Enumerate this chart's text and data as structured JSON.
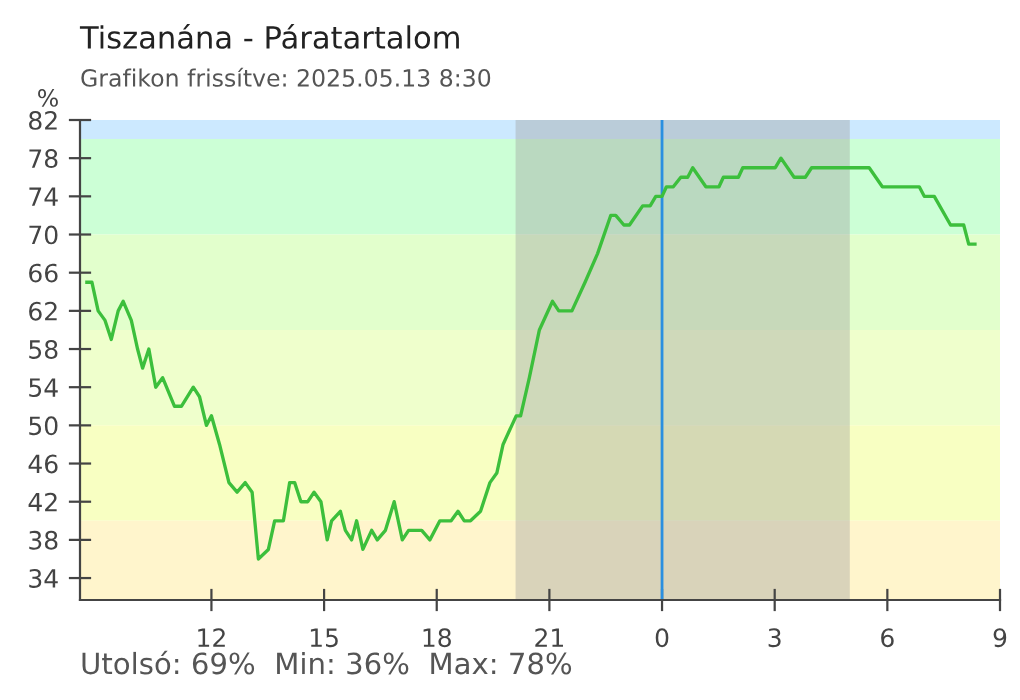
{
  "chart_data": {
    "type": "line",
    "title": "Tiszanána - Páratartalom",
    "subtitle": "Grafikon frissítve: 2025.05.13 8:30",
    "ylabel": "%",
    "annotations": [
      "Utolsó: 69%  Min: 36%  Max: 78%"
    ],
    "series": [
      {
        "color": "#3cbf3c",
        "x": [
          "2025-05-12T08:41",
          "2025-05-12T08:49",
          "2025-05-12T08:59",
          "2025-05-12T09:10",
          "2025-05-12T09:20",
          "2025-05-12T09:31",
          "2025-05-12T09:39",
          "2025-05-12T09:52",
          "2025-05-12T10:02",
          "2025-05-12T10:10",
          "2025-05-12T10:20",
          "2025-05-12T10:31",
          "2025-05-12T10:42",
          "2025-05-12T11:01",
          "2025-05-12T11:12",
          "2025-05-12T11:31",
          "2025-05-12T11:41",
          "2025-05-12T11:52",
          "2025-05-12T12:00",
          "2025-05-12T12:13",
          "2025-05-12T12:28",
          "2025-05-12T12:41",
          "2025-05-12T12:54",
          "2025-05-12T13:05",
          "2025-05-12T13:15",
          "2025-05-12T13:31",
          "2025-05-12T13:41",
          "2025-05-12T13:55",
          "2025-05-12T14:05",
          "2025-05-12T14:13",
          "2025-05-12T14:23",
          "2025-05-12T14:34",
          "2025-05-12T14:44",
          "2025-05-12T14:55",
          "2025-05-12T15:05",
          "2025-05-12T15:12",
          "2025-05-12T15:26",
          "2025-05-12T15:34",
          "2025-05-12T15:44",
          "2025-05-12T15:52",
          "2025-05-12T16:02",
          "2025-05-12T16:16",
          "2025-05-12T16:25",
          "2025-05-12T16:38",
          "2025-05-12T16:52",
          "2025-05-12T17:05",
          "2025-05-12T17:15",
          "2025-05-12T17:36",
          "2025-05-12T17:49",
          "2025-05-12T18:05",
          "2025-05-12T18:23",
          "2025-05-12T18:34",
          "2025-05-12T18:44",
          "2025-05-12T18:54",
          "2025-05-12T19:10",
          "2025-05-12T19:25",
          "2025-05-12T19:36",
          "2025-05-12T19:46",
          "2025-05-12T20:00",
          "2025-05-12T20:07",
          "2025-05-12T20:14",
          "2025-05-12T20:28",
          "2025-05-12T20:44",
          "2025-05-12T21:05",
          "2025-05-12T21:15",
          "2025-05-12T21:36",
          "2025-05-12T21:57",
          "2025-05-12T22:17",
          "2025-05-12T22:38",
          "2025-05-12T22:46",
          "2025-05-12T22:59",
          "2025-05-12T23:08",
          "2025-05-12T23:29",
          "2025-05-12T23:41",
          "2025-05-12T23:50",
          "2025-05-13T00:00",
          "2025-05-13T00:07",
          "2025-05-13T00:18",
          "2025-05-13T00:30",
          "2025-05-13T00:41",
          "2025-05-13T00:49",
          "2025-05-13T01:10",
          "2025-05-13T01:31",
          "2025-05-13T01:38",
          "2025-05-13T02:02",
          "2025-05-13T02:09",
          "2025-05-13T03:01",
          "2025-05-13T03:10",
          "2025-05-13T03:31",
          "2025-05-13T03:49",
          "2025-05-13T03:59",
          "2025-05-13T05:31",
          "2025-05-13T05:52",
          "2025-05-13T06:51",
          "2025-05-13T06:59",
          "2025-05-13T07:15",
          "2025-05-13T07:41",
          "2025-05-13T08:02",
          "2025-05-13T08:10",
          "2025-05-13T08:20"
        ],
        "values": [
          65,
          65,
          62,
          61,
          59,
          62,
          63,
          61,
          58,
          56,
          58,
          54,
          55,
          52,
          52,
          54,
          53,
          50,
          51,
          48,
          44,
          43,
          44,
          43,
          36,
          37,
          40,
          40,
          44,
          44,
          42,
          42,
          43,
          42,
          38,
          40,
          41,
          39,
          38,
          40,
          37,
          39,
          38,
          39,
          42,
          38,
          39,
          39,
          38,
          40,
          40,
          41,
          40,
          40,
          41,
          44,
          45,
          48,
          50,
          51,
          51,
          55,
          60,
          63,
          62,
          62,
          65,
          68,
          72,
          72,
          71,
          71,
          73,
          73,
          74,
          74,
          75,
          75,
          76,
          76,
          77,
          75,
          75,
          76,
          76,
          77,
          77,
          78,
          76,
          76,
          77,
          77,
          75,
          75,
          74,
          74,
          71,
          71,
          69,
          69
        ]
      }
    ],
    "xlim": [
      "2025-05-12T08:30",
      "2025-05-13T09:00"
    ],
    "ylim": [
      31.7,
      82
    ],
    "xticks": [
      {
        "value": "2025-05-12T12:00",
        "label": "12"
      },
      {
        "value": "2025-05-12T15:00",
        "label": "15"
      },
      {
        "value": "2025-05-12T18:00",
        "label": "18"
      },
      {
        "value": "2025-05-12T21:00",
        "label": "21"
      },
      {
        "value": "2025-05-13T00:00",
        "label": "0"
      },
      {
        "value": "2025-05-13T03:00",
        "label": "3"
      },
      {
        "value": "2025-05-13T06:00",
        "label": "6"
      },
      {
        "value": "2025-05-13T09:00",
        "label": "9"
      }
    ],
    "yticks": [
      34,
      38,
      42,
      46,
      50,
      54,
      58,
      62,
      66,
      70,
      74,
      78,
      82
    ],
    "bands": [
      {
        "axis": "y",
        "from": 80,
        "to": 82,
        "color": "#cce9ff"
      },
      {
        "axis": "y",
        "from": 70,
        "to": 80,
        "color": "#ccffd6"
      },
      {
        "axis": "y",
        "from": 60,
        "to": 70,
        "color": "#e2ffcc"
      },
      {
        "axis": "y",
        "from": 50,
        "to": 60,
        "color": "#efffcc"
      },
      {
        "axis": "y",
        "from": 40,
        "to": 50,
        "color": "#f8ffc2"
      },
      {
        "axis": "y",
        "from": 31.7,
        "to": 40,
        "color": "#fff5cc"
      },
      {
        "axis": "x",
        "from": "2025-05-12T20:06",
        "to": "2025-05-13T05:00",
        "color": "#a0a0a0"
      }
    ],
    "ref_lines": [
      {
        "axis": "x",
        "value": "2025-05-13T00:00",
        "color": "#2a8fe0"
      }
    ],
    "grid": false,
    "legend": false
  }
}
